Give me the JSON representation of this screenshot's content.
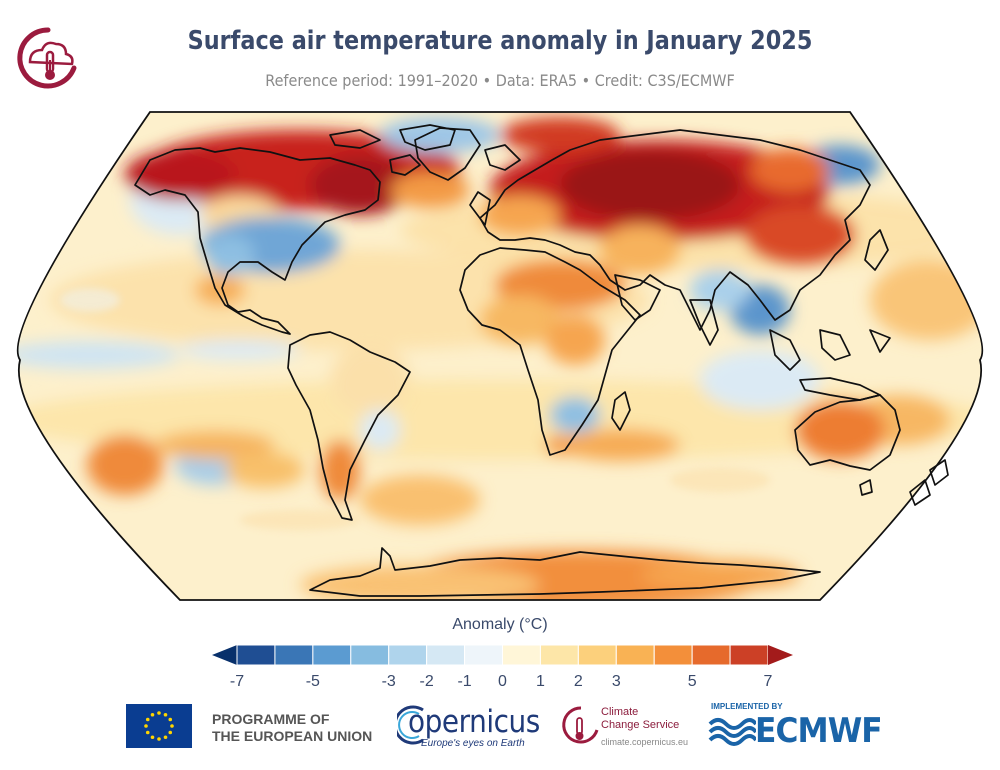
{
  "header": {
    "title": "Surface air temperature anomaly in January 2025",
    "subtitle": "Reference period: 1991–2020 • Data: ERA5 • Credit: C3S/ECMWF"
  },
  "colorbar": {
    "label": "Anomaly (°C)",
    "ticks": [
      "-7",
      "-5",
      "-3",
      "-2",
      "-1",
      "0",
      "1",
      "2",
      "3",
      "5",
      "7"
    ],
    "colors": [
      "#08306b",
      "#1f4e93",
      "#3a76b6",
      "#5b9bd1",
      "#86bce0",
      "#afd4ec",
      "#d5e8f4",
      "#eef5fa",
      "#fff6d8",
      "#fde6a8",
      "#fcd07c",
      "#f9b254",
      "#f38f3a",
      "#e66a2c",
      "#cc4026",
      "#a31b1b"
    ]
  },
  "map": {
    "projection": "Robinson",
    "ocean_base_color": "#fdf3d4",
    "strong_warm_color": "#b3191c",
    "cold_color": "#4f8fc8"
  },
  "footer": {
    "eu_line1": "PROGRAMME OF",
    "eu_line2": "THE EUROPEAN UNION",
    "copernicus": "opernicus",
    "copernicus_tagline": "Europe's eyes on Earth",
    "ccs_line1": "Climate",
    "ccs_line2": "Change Service",
    "ccs_url": "climate.copernicus.eu",
    "implemented_by": "IMPLEMENTED BY",
    "ecmwf": "ECMWF"
  }
}
